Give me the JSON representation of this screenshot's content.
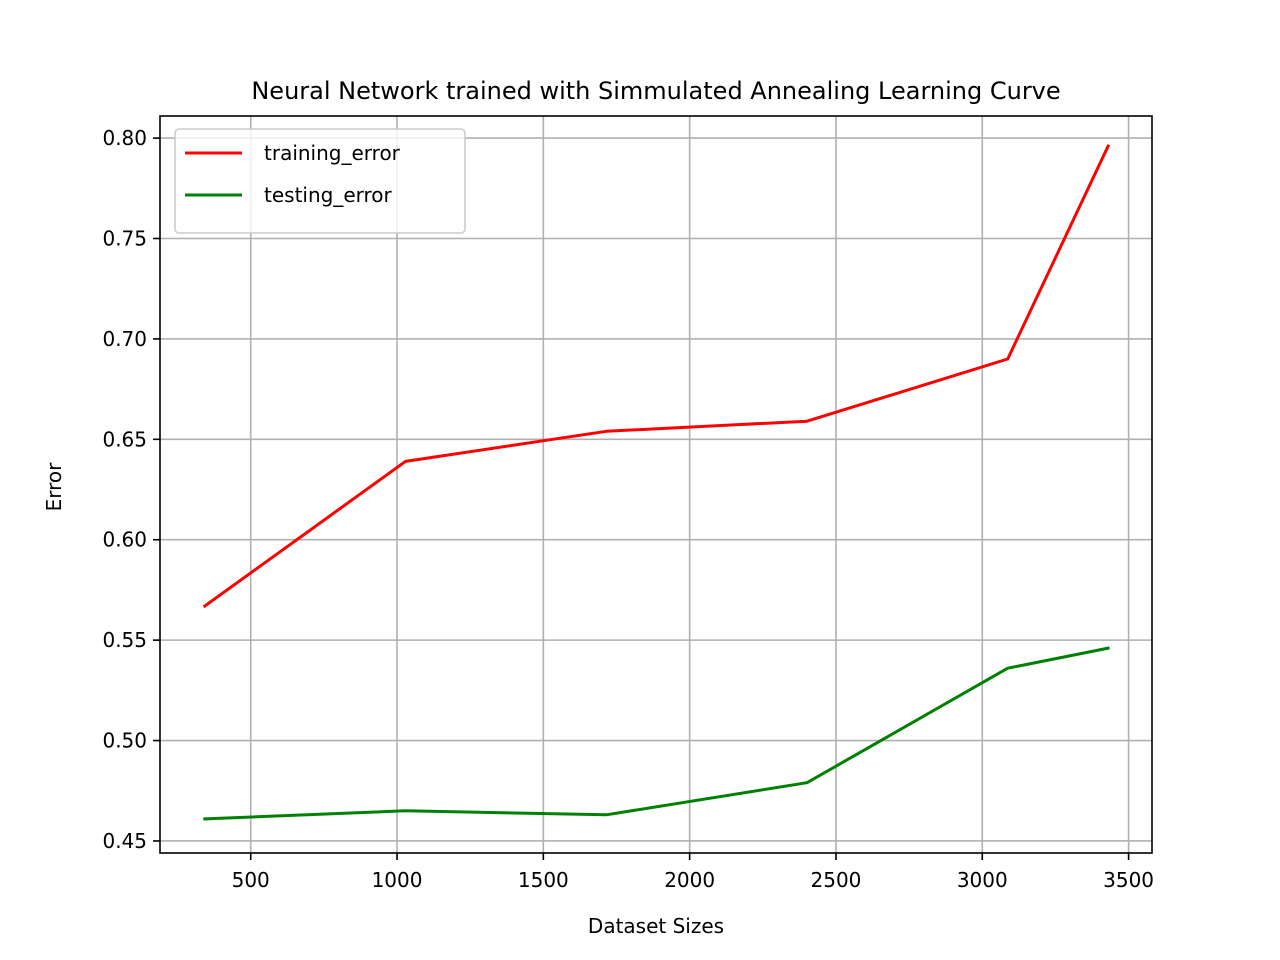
{
  "chart_data": {
    "type": "line",
    "title": "Neural Network trained with Simmulated Annealing Learning Curve",
    "xlabel": "Dataset Sizes",
    "ylabel": "Error",
    "xlim": [
      190,
      3580
    ],
    "ylim": [
      0.444,
      0.811
    ],
    "xticks": [
      500,
      1000,
      1500,
      2000,
      2500,
      3000,
      3500
    ],
    "yticks": [
      0.45,
      0.5,
      0.55,
      0.6,
      0.65,
      0.7,
      0.75,
      0.8
    ],
    "xtick_labels": [
      "500",
      "1000",
      "1500",
      "2000",
      "2500",
      "3000",
      "3500"
    ],
    "ytick_labels": [
      "0.45",
      "0.50",
      "0.55",
      "0.60",
      "0.65",
      "0.70",
      "0.75",
      "0.80"
    ],
    "grid": true,
    "legend_position": "upper-left",
    "x": [
      343,
      1029,
      1715,
      2401,
      3087,
      3430
    ],
    "series": [
      {
        "name": "training_error",
        "color": "#ff0000",
        "values": [
          0.567,
          0.639,
          0.654,
          0.659,
          0.69,
          0.796
        ]
      },
      {
        "name": "testing_error",
        "color": "#008000",
        "values": [
          0.461,
          0.465,
          0.463,
          0.479,
          0.536,
          0.546
        ]
      }
    ]
  }
}
